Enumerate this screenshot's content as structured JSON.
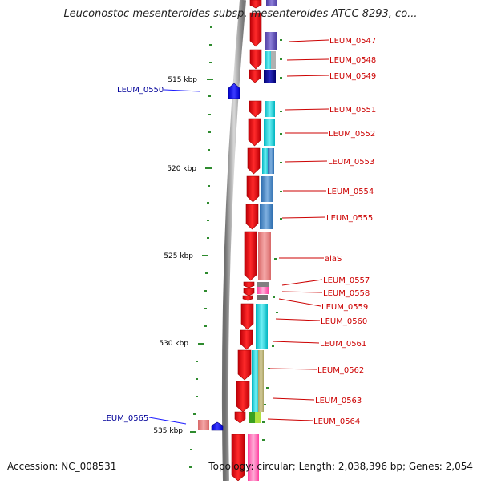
{
  "title": "Leuconostoc mesenteroides subsp. mesenteroides ATCC 8293, co...",
  "footer": {
    "accession": "Accession: NC_008531",
    "summary": "Topology: circular; Length: 2,038,396 bp; Genes: 2,054"
  },
  "colors": {
    "forward_gene": "#e8101a",
    "reverse_gene": "#1a1aff",
    "label_forward": "#cc0000",
    "label_reverse": "#000099",
    "tick": "#2e8b2e",
    "backbone": "#909090"
  },
  "scale_labels": [
    "515 kbp",
    "520 kbp",
    "525 kbp",
    "530 kbp",
    "535 kbp"
  ],
  "genes_right": [
    "LEUM_0547",
    "LEUM_0548",
    "LEUM_0549",
    "LEUM_0551",
    "LEUM_0552",
    "LEUM_0553",
    "LEUM_0554",
    "LEUM_0555",
    "alaS",
    "LEUM_0557",
    "LEUM_0558",
    "LEUM_0559",
    "LEUM_0560",
    "LEUM_0561",
    "LEUM_0562",
    "LEUM_0563",
    "LEUM_0564"
  ],
  "genes_left": [
    "LEUM_0550",
    "LEUM_0565"
  ]
}
